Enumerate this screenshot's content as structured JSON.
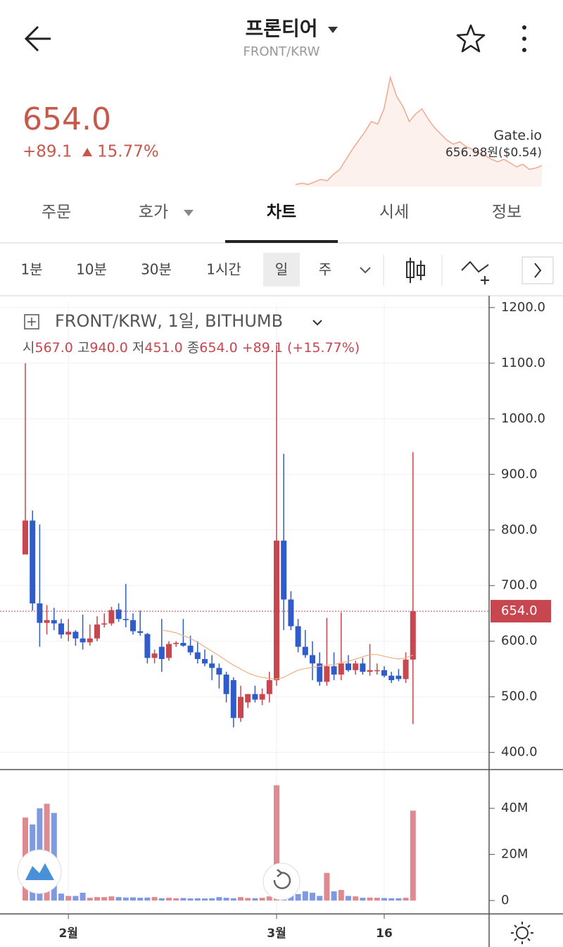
{
  "header": {
    "title": "프론티어",
    "subtitle": "FRONT/KRW"
  },
  "ticker": {
    "price": "654.0",
    "change": "+89.1",
    "change_pct": "15.77%",
    "exchange": "Gate.io",
    "exchange_price": "656.98원($0.54)",
    "sparkline": [
      10,
      11,
      10,
      12,
      14,
      13,
      18,
      22,
      30,
      38,
      45,
      52,
      60,
      58,
      70,
      95,
      80,
      72,
      60,
      66,
      70,
      62,
      55,
      50,
      45,
      42,
      44,
      40,
      38,
      35,
      33,
      30,
      28,
      30,
      27,
      24,
      26,
      22,
      23,
      25
    ]
  },
  "tabs": [
    "주문",
    "호가",
    "차트",
    "시세",
    "정보"
  ],
  "intervals": [
    "1분",
    "10분",
    "30분",
    "1시간",
    "일",
    "주"
  ],
  "chart_data": {
    "type": "candlestick",
    "title": "FRONT/KRW, 1일, BITHUMB",
    "ohlc_legend": {
      "open_label": "시",
      "open": "567.0",
      "high_label": "고",
      "high": "940.0",
      "low_label": "저",
      "low": "451.0",
      "close_label": "종",
      "close": "654.0",
      "change": "+89.1 (+15.77%)"
    },
    "categories": [
      null,
      null,
      null,
      null,
      null,
      null,
      "2월",
      null,
      null,
      null,
      null,
      null,
      null,
      null,
      null,
      null,
      null,
      null,
      null,
      null,
      null,
      null,
      null,
      null,
      null,
      null,
      null,
      null,
      null,
      null,
      null,
      null,
      null,
      null,
      null,
      "3월",
      null,
      null,
      null,
      null,
      null,
      null,
      null,
      null,
      null,
      null,
      null,
      null,
      null,
      null,
      "16",
      null,
      null,
      null,
      null
    ],
    "open": [
      756,
      817,
      668,
      633,
      638,
      632,
      612,
      617,
      605,
      598,
      605,
      630,
      632,
      657,
      640,
      638,
      618,
      613,
      570,
      590,
      570,
      595,
      597,
      592,
      580,
      568,
      560,
      552,
      540,
      530,
      462,
      490,
      505,
      495,
      505,
      530,
      781,
      675,
      627,
      590,
      575,
      560,
      527,
      555,
      540,
      560,
      548,
      560,
      545,
      548,
      548,
      538,
      538,
      532,
      567
    ],
    "high": [
      1100,
      835,
      810,
      665,
      660,
      640,
      640,
      620,
      648,
      630,
      645,
      650,
      662,
      668,
      703,
      650,
      655,
      615,
      585,
      640,
      600,
      600,
      640,
      610,
      600,
      585,
      575,
      560,
      545,
      535,
      520,
      505,
      520,
      515,
      545,
      1133,
      937,
      690,
      640,
      620,
      600,
      580,
      642,
      580,
      652,
      575,
      565,
      570,
      595,
      560,
      555,
      545,
      550,
      580,
      940
    ],
    "low": [
      756,
      655,
      590,
      612,
      620,
      605,
      600,
      592,
      585,
      592,
      600,
      625,
      628,
      635,
      625,
      612,
      610,
      560,
      560,
      545,
      565,
      590,
      590,
      575,
      560,
      555,
      530,
      515,
      490,
      445,
      455,
      480,
      490,
      485,
      490,
      520,
      620,
      620,
      580,
      570,
      530,
      520,
      520,
      530,
      530,
      545,
      540,
      540,
      538,
      540,
      535,
      525,
      528,
      525,
      451
    ],
    "close": [
      817,
      668,
      633,
      638,
      632,
      612,
      617,
      605,
      598,
      605,
      630,
      632,
      656,
      640,
      638,
      618,
      615,
      570,
      578,
      568,
      595,
      597,
      592,
      580,
      568,
      560,
      552,
      540,
      505,
      462,
      500,
      505,
      495,
      505,
      530,
      781,
      675,
      627,
      590,
      575,
      560,
      527,
      555,
      540,
      560,
      548,
      560,
      545,
      548,
      548,
      538,
      530,
      532,
      567,
      654
    ],
    "ma": [
      null,
      null,
      null,
      null,
      null,
      null,
      null,
      null,
      null,
      null,
      null,
      null,
      null,
      null,
      null,
      null,
      null,
      null,
      null,
      620,
      618,
      615,
      610,
      605,
      598,
      590,
      582,
      574,
      565,
      557,
      550,
      543,
      538,
      535,
      533,
      532,
      535,
      542,
      548,
      551,
      553,
      555,
      557,
      558,
      561,
      564,
      568,
      572,
      576,
      576,
      573,
      570,
      568,
      570,
      575
    ],
    "volume": [
      36000000,
      33000000,
      40000000,
      42000000,
      38000000,
      3000000,
      2000000,
      2000000,
      3400000,
      1200000,
      1500000,
      1500000,
      1800000,
      1500000,
      1300000,
      1400000,
      1200000,
      1300000,
      1500000,
      1000000,
      1200000,
      1000000,
      1100000,
      900000,
      1000000,
      900000,
      1000000,
      1500000,
      1200000,
      1000000,
      1500000,
      1100000,
      1000000,
      1200000,
      1800000,
      50000000,
      5000000,
      3700000,
      2800000,
      4000000,
      3400000,
      2000000,
      12000000,
      4000000,
      4600000,
      2000000,
      1800000,
      1200000,
      1300000,
      1200000,
      1100000,
      1000000,
      1000000,
      1200000,
      39000000
    ],
    "up_color": "#c7464f",
    "down_color": "#2f5cc9",
    "up_volume_color": "#df8a91",
    "down_volume_color": "#7f9ae0",
    "ma_color": "#f0b080",
    "ylim": [
      373,
      1215
    ],
    "yticks": [
      {
        "value": 400,
        "label": "400.0"
      },
      {
        "value": 500,
        "label": "500.0"
      },
      {
        "value": 600,
        "label": "600.0"
      },
      {
        "value": 700,
        "label": "700.0"
      },
      {
        "value": 800,
        "label": "800.0"
      },
      {
        "value": 900,
        "label": "900.0"
      },
      {
        "value": 1000,
        "label": "1000.0"
      },
      {
        "value": 1100,
        "label": "1100.0"
      },
      {
        "value": 1200,
        "label": "1200.0"
      }
    ],
    "y2lim": [
      -5800000,
      55600000
    ],
    "y2ticks": [
      0,
      {
        "value": 20000000,
        "label": "20M"
      },
      {
        "value": 40000000,
        "label": "40M"
      }
    ],
    "last_price": {
      "value": 654,
      "label": "654.0"
    },
    "grid": true
  }
}
